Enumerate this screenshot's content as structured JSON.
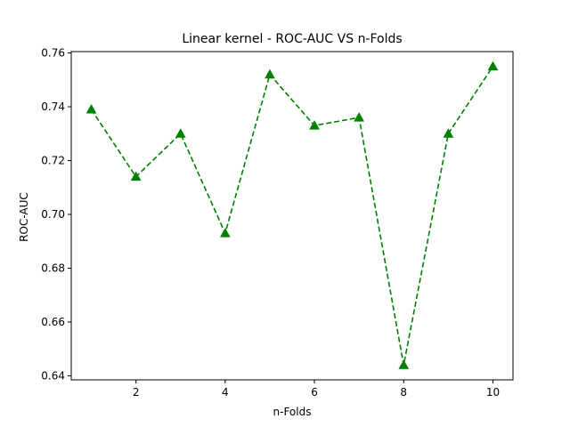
{
  "chart_data": {
    "type": "line",
    "title": "Linear kernel - ROC-AUC VS n-Folds",
    "xlabel": "n-Folds",
    "ylabel": "ROC-AUC",
    "x": [
      1,
      2,
      3,
      4,
      5,
      6,
      7,
      8,
      9,
      10
    ],
    "series": [
      {
        "values": [
          0.739,
          0.714,
          0.73,
          0.693,
          0.752,
          0.733,
          0.736,
          0.644,
          0.73,
          0.755
        ],
        "color": "#008000",
        "line_style": "dashed",
        "marker": "triangle-up"
      }
    ],
    "xlim": [
      0.55,
      10.45
    ],
    "ylim": [
      0.6385,
      0.7605
    ],
    "xticks": [
      2,
      4,
      6,
      8,
      10
    ],
    "xtick_labels": [
      "2",
      "4",
      "6",
      "8",
      "10"
    ],
    "yticks": [
      0.64,
      0.66,
      0.68,
      0.7,
      0.72,
      0.74,
      0.76
    ],
    "ytick_labels": [
      "0.64",
      "0.66",
      "0.68",
      "0.70",
      "0.72",
      "0.74",
      "0.76"
    ],
    "grid": false,
    "legend": "none"
  }
}
